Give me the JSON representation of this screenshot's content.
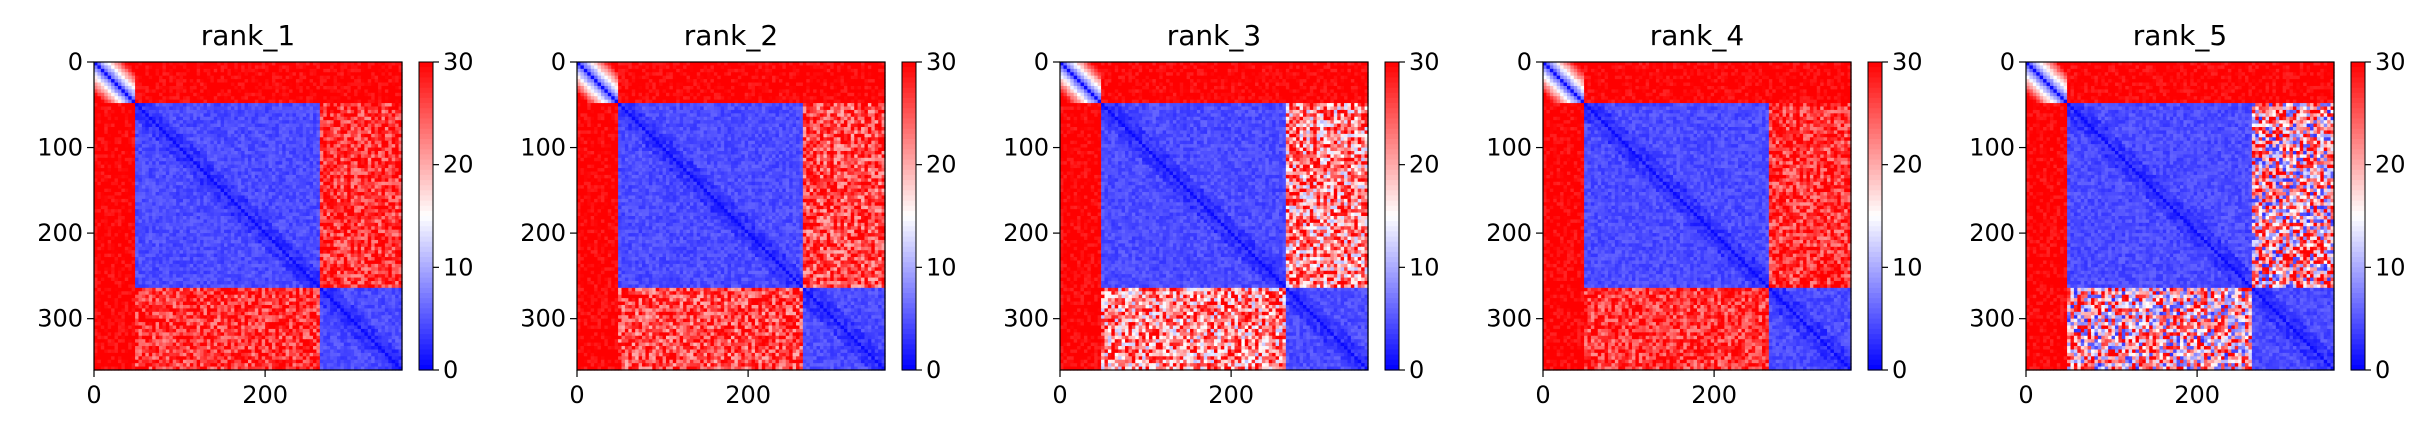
{
  "chart_data": [
    {
      "type": "heatmap",
      "title": "rank_1",
      "xlabel": "",
      "ylabel": "",
      "n": 360,
      "xlim": [
        0,
        360
      ],
      "ylim": [
        360,
        0
      ],
      "xticks": [
        0,
        200
      ],
      "yticks": [
        0,
        100,
        200,
        300
      ],
      "domains": [
        0,
        50,
        265,
        360
      ],
      "offdiag": {
        "A_B": 30,
        "A_C": 30,
        "B_C": 27
      },
      "colorbar": {
        "vmin": 0,
        "vmax": 30,
        "ticks": [
          0,
          10,
          20,
          30
        ],
        "colormap": "bwr"
      }
    },
    {
      "type": "heatmap",
      "title": "rank_2",
      "xlabel": "",
      "ylabel": "",
      "n": 360,
      "xlim": [
        0,
        360
      ],
      "ylim": [
        360,
        0
      ],
      "xticks": [
        0,
        200
      ],
      "yticks": [
        0,
        100,
        200,
        300
      ],
      "domains": [
        0,
        50,
        265,
        360
      ],
      "offdiag": {
        "A_B": 30,
        "A_C": 30,
        "B_C": 26
      },
      "colorbar": {
        "vmin": 0,
        "vmax": 30,
        "ticks": [
          0,
          10,
          20,
          30
        ],
        "colormap": "bwr"
      }
    },
    {
      "type": "heatmap",
      "title": "rank_3",
      "xlabel": "",
      "ylabel": "",
      "n": 360,
      "xlim": [
        0,
        360
      ],
      "ylim": [
        360,
        0
      ],
      "xticks": [
        0,
        200
      ],
      "yticks": [
        0,
        100,
        200,
        300
      ],
      "domains": [
        0,
        50,
        265,
        360
      ],
      "offdiag": {
        "A_B": 30,
        "A_C": 30,
        "B_C": 22
      },
      "colorbar": {
        "vmin": 0,
        "vmax": 30,
        "ticks": [
          0,
          10,
          20,
          30
        ],
        "colormap": "bwr"
      }
    },
    {
      "type": "heatmap",
      "title": "rank_4",
      "xlabel": "",
      "ylabel": "",
      "n": 360,
      "xlim": [
        0,
        360
      ],
      "ylim": [
        360,
        0
      ],
      "xticks": [
        0,
        200
      ],
      "yticks": [
        0,
        100,
        200,
        300
      ],
      "domains": [
        0,
        50,
        265,
        360
      ],
      "offdiag": {
        "A_B": 30,
        "A_C": 30,
        "B_C": 27
      },
      "colorbar": {
        "vmin": 0,
        "vmax": 30,
        "ticks": [
          0,
          10,
          20,
          30
        ],
        "colormap": "bwr"
      }
    },
    {
      "type": "heatmap",
      "title": "rank_5",
      "xlabel": "",
      "ylabel": "",
      "n": 360,
      "xlim": [
        0,
        360
      ],
      "ylim": [
        360,
        0
      ],
      "xticks": [
        0,
        200
      ],
      "yticks": [
        0,
        100,
        200,
        300
      ],
      "domains": [
        0,
        50,
        265,
        360
      ],
      "offdiag": {
        "A_B": 30,
        "A_C": 30,
        "B_C": 18
      },
      "colorbar": {
        "vmin": 0,
        "vmax": 30,
        "ticks": [
          0,
          10,
          20,
          30
        ],
        "colormap": "bwr"
      }
    }
  ]
}
